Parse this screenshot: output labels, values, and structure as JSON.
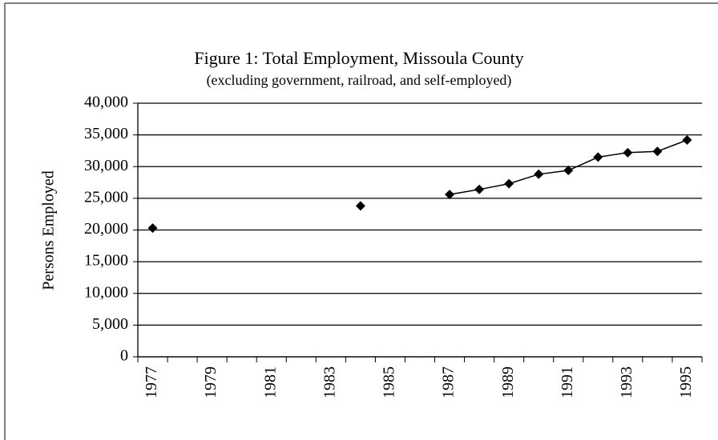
{
  "chart_data": {
    "type": "line",
    "title": "Figure 1: Total Employment, Missoula County",
    "subtitle": "(excluding government, railroad, and self-employed)",
    "y_label": "Persons Employed",
    "categories": [
      "1977",
      null,
      "1979",
      null,
      "1981",
      null,
      "1983",
      null,
      "1985",
      null,
      "1987",
      null,
      "1989",
      null,
      "1991",
      null,
      "1993",
      null,
      "1995"
    ],
    "series": [
      {
        "name": "Total Employment",
        "color": "#000000",
        "values": [
          20300,
          null,
          null,
          null,
          null,
          null,
          null,
          23800,
          null,
          null,
          25600,
          26400,
          27300,
          28800,
          29400,
          31500,
          32200,
          32400,
          34200
        ]
      }
    ],
    "ylim": [
      0,
      40000
    ],
    "yticks": [
      0,
      {
        "value": 5000,
        "label": "5,000"
      },
      {
        "value": 10000,
        "label": "10,000"
      },
      {
        "value": 15000,
        "label": "15,000"
      },
      {
        "value": 20000,
        "label": "20,000"
      },
      {
        "value": 25000,
        "label": "25,000"
      },
      {
        "value": 30000,
        "label": "30,000"
      },
      {
        "value": 35000,
        "label": "35,000"
      },
      {
        "value": 40000,
        "label": "40,000"
      }
    ],
    "grid": true
  }
}
